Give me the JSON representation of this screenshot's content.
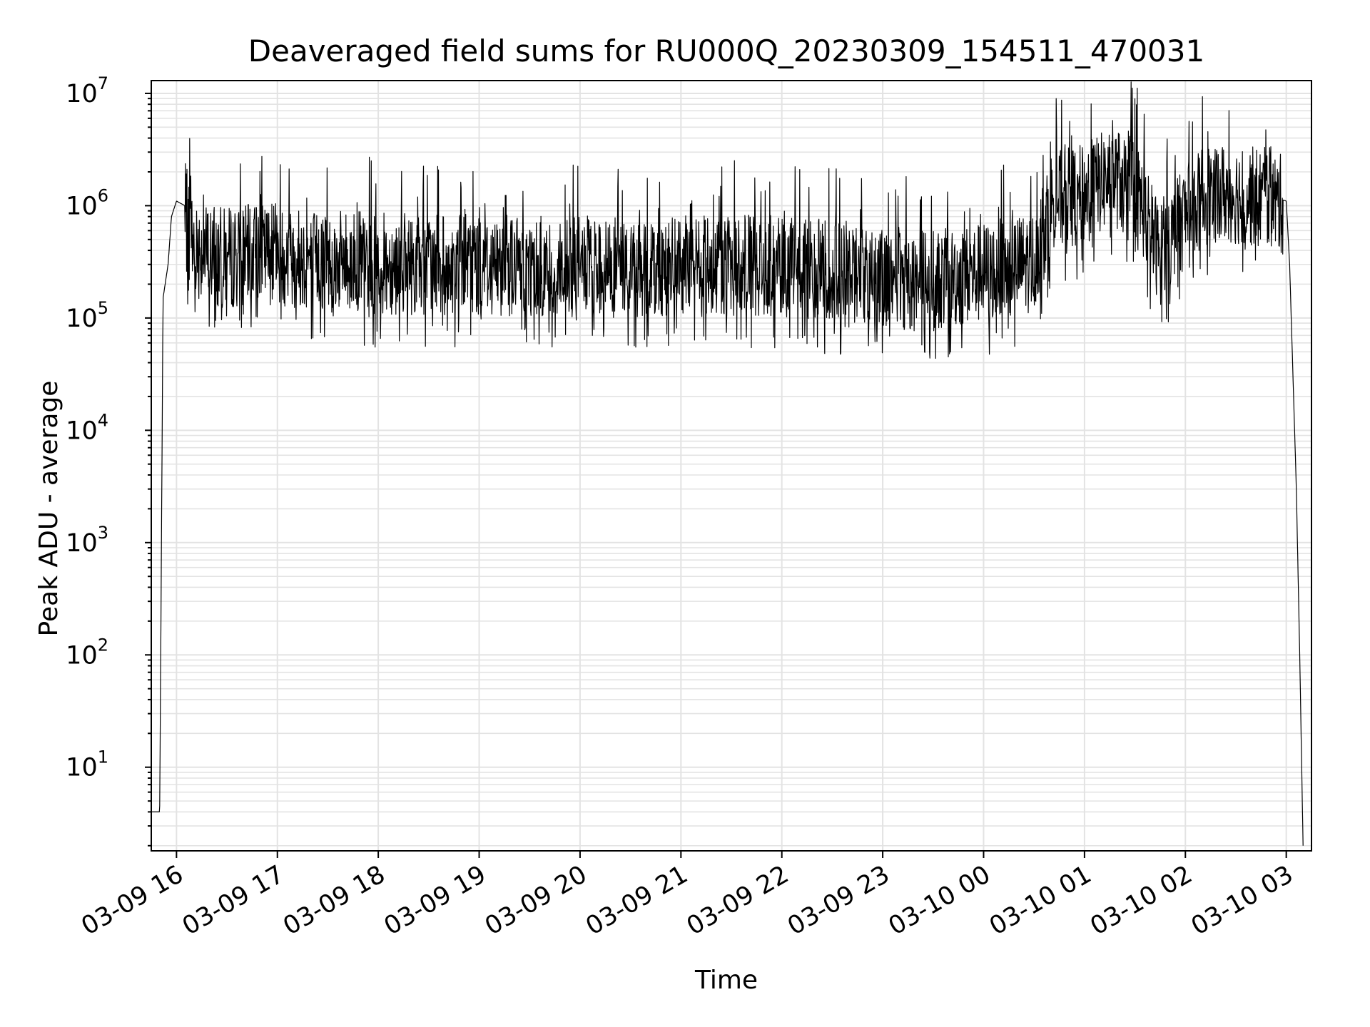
{
  "chart_data": {
    "type": "line",
    "title": "Deaveraged field sums for RU000Q_20230309_154511_470031",
    "xlabel": "Time",
    "ylabel": "Peak ADU - average",
    "yscale": "log",
    "ylim": [
      1.8,
      13000000
    ],
    "xlim": [
      "2023-03-09 15:45",
      "2023-03-10 03:15"
    ],
    "x_ticks": [
      "03-09 16",
      "03-09 17",
      "03-09 18",
      "03-09 19",
      "03-09 20",
      "03-09 21",
      "03-09 22",
      "03-09 23",
      "03-10 00",
      "03-10 01",
      "03-10 02",
      "03-10 03"
    ],
    "y_ticks": [
      {
        "base": "10",
        "exp": "1"
      },
      {
        "base": "10",
        "exp": "2"
      },
      {
        "base": "10",
        "exp": "3"
      },
      {
        "base": "10",
        "exp": "4"
      },
      {
        "base": "10",
        "exp": "5"
      },
      {
        "base": "10",
        "exp": "6"
      },
      {
        "base": "10",
        "exp": "7"
      }
    ],
    "grid": true,
    "line_color": "#000000",
    "series": [
      {
        "values_note": "",
        "x": [
          "2023-03-09 15:45",
          "2023-03-09 15:48",
          "2023-03-09 15:50",
          "2023-03-09 15:52",
          "2023-03-09 15:55",
          "2023-03-09 15:57",
          "2023-03-09 16:00",
          "2023-03-09 16:05",
          "2023-03-09 16:10",
          "2023-03-09 16:15",
          "2023-03-09 16:20",
          "2023-03-09 16:30",
          "2023-03-09 16:40",
          "2023-03-09 16:50",
          "2023-03-09 17:00",
          "2023-03-09 17:15",
          "2023-03-09 17:30",
          "2023-03-09 17:45",
          "2023-03-09 18:00",
          "2023-03-09 18:30",
          "2023-03-09 19:00",
          "2023-03-09 19:30",
          "2023-03-09 20:00",
          "2023-03-09 20:30",
          "2023-03-09 21:00",
          "2023-03-09 21:30",
          "2023-03-09 22:00",
          "2023-03-09 22:30",
          "2023-03-09 23:00",
          "2023-03-09 23:30",
          "2023-03-10 00:00",
          "2023-03-10 00:30",
          "2023-03-10 00:40",
          "2023-03-10 01:00",
          "2023-03-10 01:15",
          "2023-03-10 01:30",
          "2023-03-10 01:45",
          "2023-03-10 02:00",
          "2023-03-10 02:15",
          "2023-03-10 02:30",
          "2023-03-10 02:45",
          "2023-03-10 03:00",
          "2023-03-10 03:02",
          "2023-03-10 03:04",
          "2023-03-10 03:06",
          "2023-03-10 03:08",
          "2023-03-10 03:10"
        ],
        "y": [
          4,
          4,
          4,
          150000,
          300000,
          800000,
          1100000,
          1000000,
          500000,
          450000,
          400000,
          380000,
          400000,
          420000,
          400000,
          380000,
          350000,
          360000,
          340000,
          330000,
          330000,
          320000,
          320000,
          310000,
          320000,
          330000,
          320000,
          300000,
          260000,
          240000,
          280000,
          350000,
          1200000,
          1400000,
          2000000,
          1700000,
          400000,
          900000,
          1500000,
          1400000,
          1300000,
          1100000,
          300000,
          30000,
          3000,
          100,
          2
        ]
      }
    ]
  }
}
